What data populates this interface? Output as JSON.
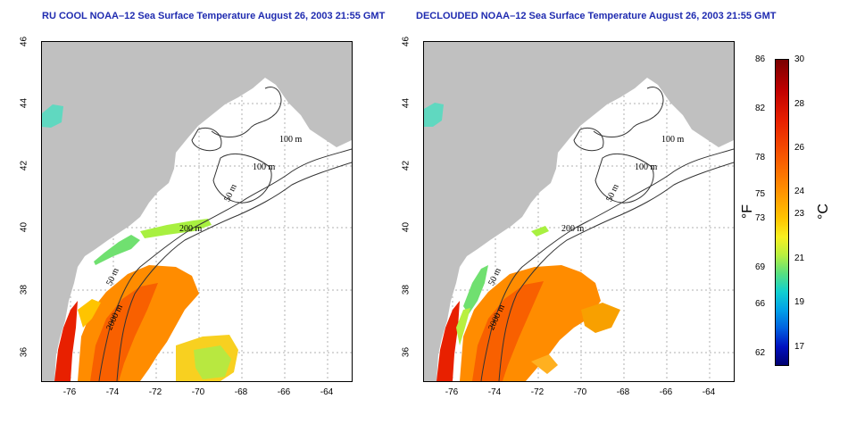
{
  "titles": {
    "left": "RU COOL NOAA–12 Sea Surface Temperature August 26, 2003 21:55 GMT",
    "right": "DECLOUDED NOAA–12 Sea Surface Temperature August 26, 2003 21:55 GMT"
  },
  "axes": {
    "lat_labels": [
      "46",
      "44",
      "42",
      "40",
      "38",
      "36"
    ],
    "lon_labels": [
      "-76",
      "-74",
      "-72",
      "-70",
      "-68",
      "-66",
      "-64"
    ]
  },
  "contour_labels": {
    "left": [
      "100 m",
      "100 m",
      "50 m",
      "200 m",
      "50 m",
      "2000 m"
    ],
    "right": [
      "100 m",
      "100 m",
      "50 m",
      "200 m",
      "50 m",
      "2000 m"
    ]
  },
  "colorbar": {
    "fahrenheit_unit": "°F",
    "celsius_unit": "°C",
    "fahrenheit_ticks": [
      "86",
      "82",
      "78",
      "75",
      "73",
      "69",
      "66",
      "62"
    ],
    "celsius_ticks": [
      "30",
      "28",
      "26",
      "24",
      "23",
      "21",
      "19",
      "17"
    ]
  },
  "colors": {
    "land": "#c0c0c0",
    "title": "#1f2bb0",
    "grid": "#b0b0b0"
  }
}
